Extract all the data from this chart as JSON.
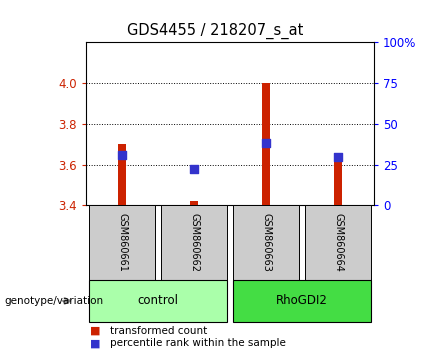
{
  "title": "GDS4455 / 218207_s_at",
  "samples": [
    "GSM860661",
    "GSM860662",
    "GSM860663",
    "GSM860664"
  ],
  "transformed_count": [
    3.7,
    3.42,
    4.0,
    3.65
  ],
  "percentile_rank_value": [
    3.645,
    3.578,
    3.705,
    3.638
  ],
  "ylim_left": [
    3.4,
    4.2
  ],
  "ylim_right": [
    0,
    100
  ],
  "yticks_left": [
    3.4,
    3.6,
    3.8,
    4.0
  ],
  "yticks_right": [
    0,
    25,
    50,
    75,
    100
  ],
  "groups": [
    {
      "label": "control",
      "samples": [
        0,
        1
      ],
      "color": "#aaffaa"
    },
    {
      "label": "RhoGDI2",
      "samples": [
        2,
        3
      ],
      "color": "#44dd44"
    }
  ],
  "bar_color": "#cc2200",
  "blue_color": "#3333cc",
  "bar_width": 0.1,
  "blue_size": 40,
  "sample_bg_color": "#cccccc",
  "legend_red_label": "transformed count",
  "legend_blue_label": "percentile rank within the sample",
  "genotype_label": "genotype/variation"
}
